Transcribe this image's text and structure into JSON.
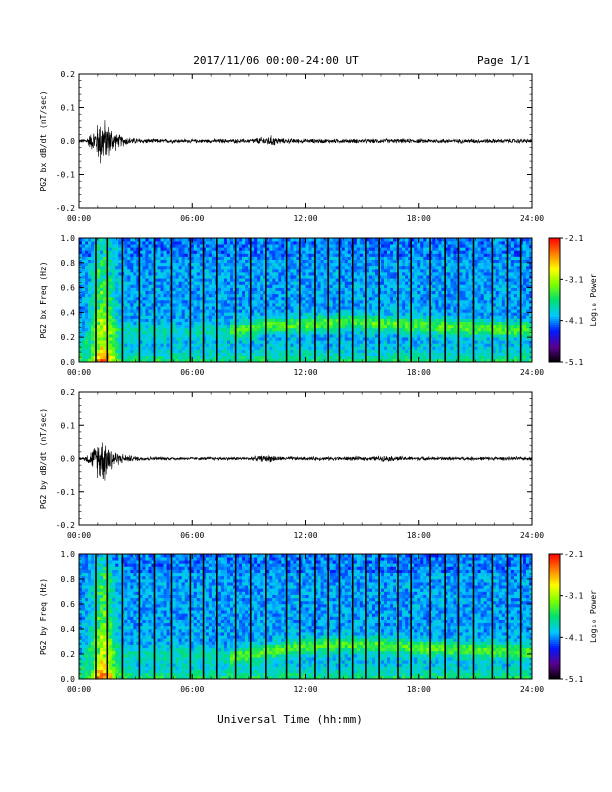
{
  "header": {
    "title": "2017/11/06  00:00-24:00 UT",
    "page": "Page 1/1"
  },
  "footer": {
    "xlabel": "Universal Time (hh:mm)"
  },
  "colorbar": {
    "label": "Log₁₀ Power",
    "ticks": [
      "-2.1",
      "-3.1",
      "-4.1",
      "-5.1"
    ],
    "values": [
      -2.1,
      -3.1,
      -4.1,
      -5.1
    ],
    "range": [
      -5.1,
      -2.1
    ],
    "colormap": [
      "#000000",
      "#5a0090",
      "#0018ff",
      "#00c8ff",
      "#00e070",
      "#7aff00",
      "#ffff00",
      "#ff8000",
      "#ff0000"
    ]
  },
  "chart_data": [
    {
      "type": "line",
      "ylabel": "PG2 bx dB/dt (nT/sec)",
      "xlim": [
        0,
        24
      ],
      "ylim": [
        -0.2,
        0.2
      ],
      "xticks": [
        "00:00",
        "06:00",
        "12:00",
        "18:00",
        "24:00"
      ],
      "yticks": [
        "0.2",
        "0.1",
        "0.0",
        "-0.1",
        "-0.2"
      ],
      "ytick_values": [
        0.2,
        0.1,
        0.0,
        -0.1,
        -0.2
      ],
      "envelope": {
        "x": [
          0.0,
          0.3,
          0.5,
          0.8,
          1.0,
          1.2,
          1.4,
          1.6,
          1.8,
          2.0,
          2.5,
          3.0,
          4.0,
          6.0,
          9.0,
          9.8,
          10.2,
          10.8,
          12.0,
          15.0,
          18.0,
          21.0,
          24.0
        ],
        "y": [
          0.005,
          0.006,
          0.015,
          0.03,
          0.05,
          0.075,
          0.055,
          0.045,
          0.035,
          0.02,
          0.012,
          0.008,
          0.006,
          0.005,
          0.006,
          0.012,
          0.015,
          0.007,
          0.006,
          0.006,
          0.006,
          0.006,
          0.006
        ]
      }
    },
    {
      "type": "heatmap",
      "ylabel": "PG2 bx Freq (Hz)",
      "xlim": [
        0,
        24
      ],
      "ylim": [
        0,
        1.0
      ],
      "xticks": [
        "00:00",
        "06:00",
        "12:00",
        "18:00",
        "24:00"
      ],
      "yticks": [
        "1.0",
        "0.8",
        "0.6",
        "0.4",
        "0.2",
        "0.0"
      ],
      "ytick_values": [
        1.0,
        0.8,
        0.6,
        0.4,
        0.2,
        0.0
      ],
      "zlim": [
        -5.1,
        -2.1
      ],
      "gap_times": [
        0.9,
        1.5,
        2.3,
        3.2,
        4.0,
        4.9,
        5.9,
        6.6,
        7.3,
        8.3,
        9.1,
        9.9,
        11.0,
        11.7,
        12.5,
        13.2,
        13.8,
        14.5,
        15.2,
        15.9,
        16.9,
        17.6,
        18.6,
        19.4,
        20.1,
        20.9,
        21.9,
        22.7,
        23.4
      ],
      "bright_band": {
        "x": [
          0,
          1.0,
          2.0,
          8.0,
          10.0,
          12.0,
          14.0,
          16.0,
          18.0,
          20.0,
          22.0,
          24.0
        ],
        "freq": [
          0.05,
          0.35,
          0.25,
          0.25,
          0.3,
          0.3,
          0.33,
          0.31,
          0.3,
          0.28,
          0.27,
          0.26
        ]
      }
    },
    {
      "type": "line",
      "ylabel": "PG2 by dB/dt (nT/sec)",
      "xlim": [
        0,
        24
      ],
      "ylim": [
        -0.2,
        0.2
      ],
      "xticks": [
        "00:00",
        "06:00",
        "12:00",
        "18:00",
        "24:00"
      ],
      "yticks": [
        "0.2",
        "0.1",
        "0.0",
        "-0.1",
        "-0.2"
      ],
      "ytick_values": [
        0.2,
        0.1,
        0.0,
        -0.1,
        -0.2
      ],
      "envelope": {
        "x": [
          0.0,
          0.3,
          0.5,
          0.8,
          1.0,
          1.2,
          1.4,
          1.6,
          1.8,
          2.0,
          2.5,
          3.0,
          4.0,
          6.0,
          9.0,
          9.8,
          10.2,
          10.8,
          12.0,
          15.5,
          16.2,
          18.0,
          21.0,
          24.0
        ],
        "y": [
          0.004,
          0.006,
          0.015,
          0.03,
          0.05,
          0.065,
          0.06,
          0.045,
          0.03,
          0.018,
          0.01,
          0.007,
          0.005,
          0.004,
          0.005,
          0.009,
          0.01,
          0.005,
          0.005,
          0.006,
          0.008,
          0.005,
          0.005,
          0.005
        ]
      }
    },
    {
      "type": "heatmap",
      "ylabel": "PG2 by Freq (Hz)",
      "xlim": [
        0,
        24
      ],
      "ylim": [
        0,
        1.0
      ],
      "xticks": [
        "00:00",
        "06:00",
        "12:00",
        "18:00",
        "24:00"
      ],
      "yticks": [
        "1.0",
        "0.8",
        "0.6",
        "0.4",
        "0.2",
        "0.0"
      ],
      "ytick_values": [
        1.0,
        0.8,
        0.6,
        0.4,
        0.2,
        0.0
      ],
      "zlim": [
        -5.1,
        -2.1
      ],
      "gap_times": [
        0.9,
        1.5,
        2.3,
        3.2,
        4.0,
        4.9,
        5.9,
        6.6,
        7.3,
        8.3,
        9.1,
        9.9,
        11.0,
        11.7,
        12.5,
        13.2,
        13.8,
        14.5,
        15.2,
        15.9,
        16.9,
        17.6,
        18.6,
        19.4,
        20.1,
        20.9,
        21.9,
        22.7,
        23.4
      ],
      "bright_band": {
        "x": [
          0,
          1.0,
          2.0,
          8.0,
          10.0,
          12.0,
          14.0,
          16.0,
          18.0,
          20.0,
          22.0,
          24.0
        ],
        "freq": [
          0.05,
          0.35,
          0.2,
          0.18,
          0.22,
          0.26,
          0.28,
          0.27,
          0.25,
          0.24,
          0.23,
          0.22
        ]
      }
    }
  ]
}
